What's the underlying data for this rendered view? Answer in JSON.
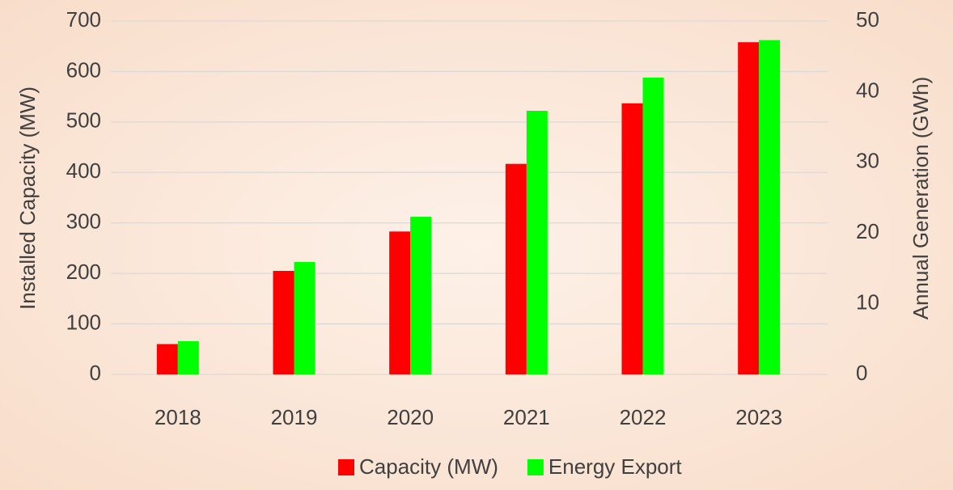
{
  "chart_data": {
    "type": "bar",
    "categories": [
      "2018",
      "2019",
      "2020",
      "2021",
      "2022",
      "2023"
    ],
    "series": [
      {
        "name": "Capacity (MW)",
        "color": "#ff0000",
        "values": [
          60,
          205,
          283,
          417,
          537,
          658
        ]
      },
      {
        "name": "Energy Export",
        "color": "#00ff00",
        "axis": "y2",
        "values": [
          4.7,
          15.9,
          22.3,
          37.3,
          42.0,
          47.3
        ]
      }
    ],
    "ylabel": "Installed Capacity (MW)",
    "y2label": "Annual Generation (GWh)",
    "ylim": [
      0,
      700
    ],
    "yticks": [
      0,
      100,
      200,
      300,
      400,
      500,
      600,
      700
    ],
    "y2lim": [
      0,
      50
    ],
    "y2ticks": [
      0,
      10,
      20,
      30,
      40,
      50
    ],
    "grid": true,
    "legend": "bottom"
  }
}
